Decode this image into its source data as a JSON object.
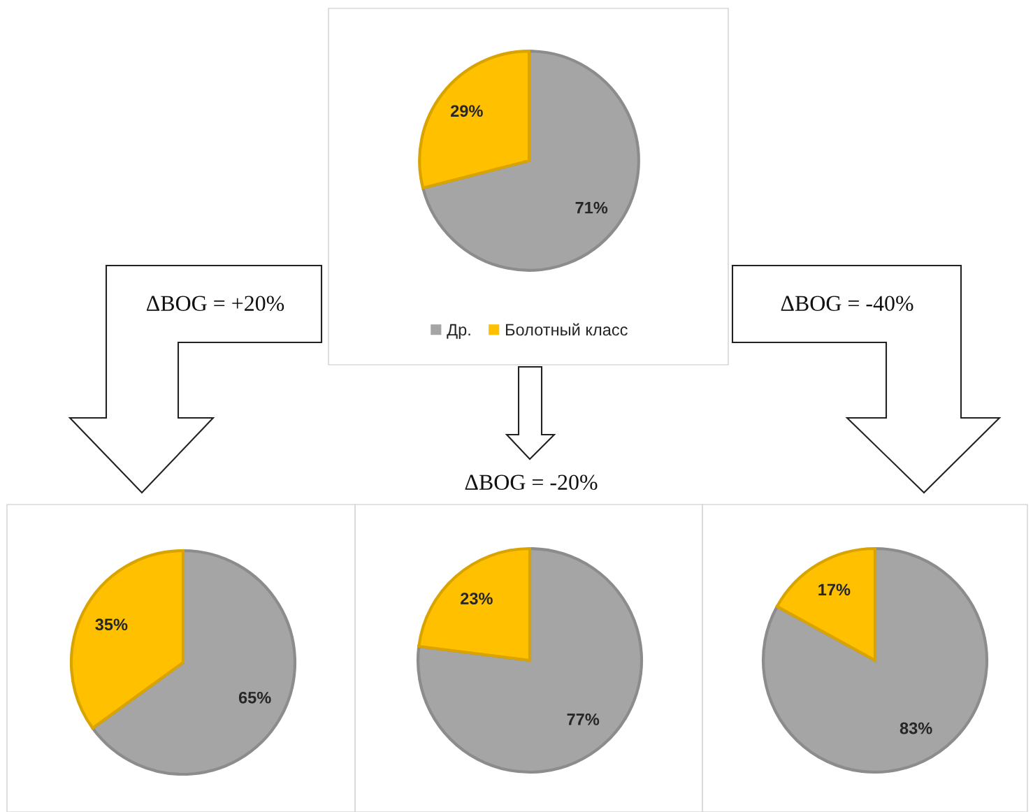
{
  "chart_data": [
    {
      "type": "pie",
      "categories": [
        "Др.",
        "Болотный класс"
      ],
      "values": [
        71,
        29
      ],
      "colors": [
        "#a5a5a5",
        "#ffc000"
      ],
      "value_labels": [
        "71%",
        "29%"
      ],
      "legend": "bottom"
    },
    {
      "type": "pie",
      "categories": [
        null,
        null
      ],
      "values": [
        65,
        35
      ],
      "colors": [
        "#a5a5a5",
        "#ffc000"
      ],
      "value_labels": [
        "65%",
        "35%"
      ],
      "annotations": [
        "ΔBOG = +20%"
      ]
    },
    {
      "type": "pie",
      "categories": [
        null,
        null
      ],
      "values": [
        77,
        23
      ],
      "colors": [
        "#a5a5a5",
        "#ffc000"
      ],
      "value_labels": [
        "77%",
        "23%"
      ],
      "annotations": [
        "ΔBOG = -20%"
      ]
    },
    {
      "type": "pie",
      "categories": [
        null,
        null
      ],
      "values": [
        83,
        17
      ],
      "colors": [
        "#a5a5a5",
        "#ffc000"
      ],
      "value_labels": [
        "83%",
        "17%"
      ],
      "annotations": [
        "ΔBOG = -40%"
      ]
    }
  ]
}
